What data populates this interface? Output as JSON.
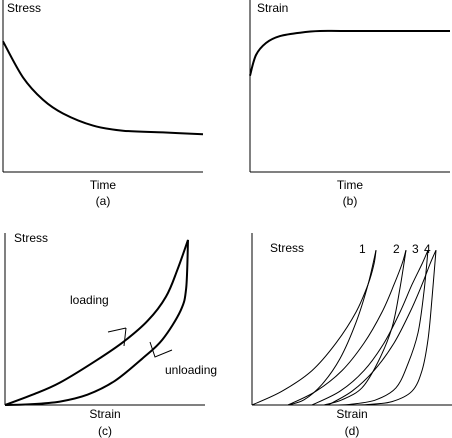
{
  "chart_data": [
    {
      "type": "line",
      "panel_label": "(a)",
      "ylabel": "Stress",
      "xlabel": "Time",
      "series": [
        {
          "x": [
            0,
            0.1,
            0.2,
            0.3,
            0.45,
            0.6,
            0.8,
            1.0
          ],
          "y": [
            0.76,
            0.55,
            0.42,
            0.34,
            0.27,
            0.24,
            0.23,
            0.22
          ]
        }
      ]
    },
    {
      "type": "line",
      "panel_label": "(b)",
      "ylabel": "Strain",
      "xlabel": "Time",
      "series": [
        {
          "x": [
            0,
            0.03,
            0.08,
            0.15,
            0.25,
            0.35,
            0.5,
            1.0
          ],
          "y": [
            0.56,
            0.68,
            0.75,
            0.79,
            0.81,
            0.82,
            0.82,
            0.82
          ]
        }
      ]
    },
    {
      "type": "line",
      "panel_label": "(c)",
      "ylabel": "Stress",
      "xlabel": "Strain",
      "annotations": {
        "loading": "loading",
        "unloading": "unloading"
      },
      "series": [
        {
          "x": [
            0,
            0.15,
            0.3,
            0.5,
            0.65,
            0.78,
            0.88,
            0.94,
            1.0
          ],
          "y": [
            0,
            0.06,
            0.13,
            0.26,
            0.37,
            0.49,
            0.63,
            0.78,
            0.96
          ]
        },
        {
          "x": [
            1.0,
            0.99,
            0.96,
            0.86,
            0.75,
            0.6,
            0.45,
            0.3,
            0.15,
            0.0
          ],
          "y": [
            0.96,
            0.68,
            0.55,
            0.38,
            0.27,
            0.14,
            0.06,
            0.02,
            0.005,
            0
          ]
        }
      ]
    },
    {
      "type": "line",
      "panel_label": "(d)",
      "ylabel": "Stress",
      "xlabel": "Strain",
      "curve_labels": [
        "1",
        "2",
        "3",
        "4"
      ],
      "series": [
        {
          "name": "1",
          "load_x": [
            0,
            0.15,
            0.3,
            0.42,
            0.52,
            0.58,
            0.61,
            0.62
          ],
          "load_y": [
            0,
            0.08,
            0.2,
            0.36,
            0.54,
            0.7,
            0.82,
            0.9
          ],
          "unload_x": [
            0.62,
            0.58,
            0.52,
            0.44,
            0.35,
            0.26,
            0.18
          ],
          "unload_y": [
            0.9,
            0.7,
            0.48,
            0.27,
            0.12,
            0.03,
            0
          ]
        },
        {
          "name": "2",
          "load_x": [
            0.18,
            0.32,
            0.45,
            0.56,
            0.65,
            0.71,
            0.75,
            0.77
          ],
          "load_y": [
            0,
            0.08,
            0.2,
            0.36,
            0.54,
            0.7,
            0.82,
            0.9
          ],
          "unload_x": [
            0.77,
            0.74,
            0.7,
            0.63,
            0.55,
            0.45,
            0.36
          ],
          "unload_y": [
            0.9,
            0.68,
            0.45,
            0.25,
            0.1,
            0.03,
            0
          ]
        },
        {
          "name": "3",
          "load_x": [
            0.3,
            0.44,
            0.56,
            0.66,
            0.74,
            0.8,
            0.85,
            0.88
          ],
          "load_y": [
            0,
            0.08,
            0.2,
            0.36,
            0.54,
            0.7,
            0.82,
            0.9
          ],
          "unload_x": [
            0.88,
            0.86,
            0.83,
            0.78,
            0.72,
            0.62,
            0.5,
            0.42
          ],
          "unload_y": [
            0.9,
            0.66,
            0.42,
            0.24,
            0.1,
            0.03,
            0.005,
            0
          ]
        },
        {
          "name": "4",
          "load_x": [
            0.38,
            0.5,
            0.61,
            0.71,
            0.79,
            0.85,
            0.89,
            0.92
          ],
          "load_y": [
            0,
            0.08,
            0.2,
            0.36,
            0.54,
            0.7,
            0.82,
            0.9
          ],
          "unload_x": [
            0.92,
            0.9,
            0.88,
            0.85,
            0.8,
            0.7,
            0.58,
            0.48
          ],
          "unload_y": [
            0.9,
            0.62,
            0.38,
            0.2,
            0.08,
            0.02,
            0.003,
            0
          ]
        }
      ]
    }
  ]
}
